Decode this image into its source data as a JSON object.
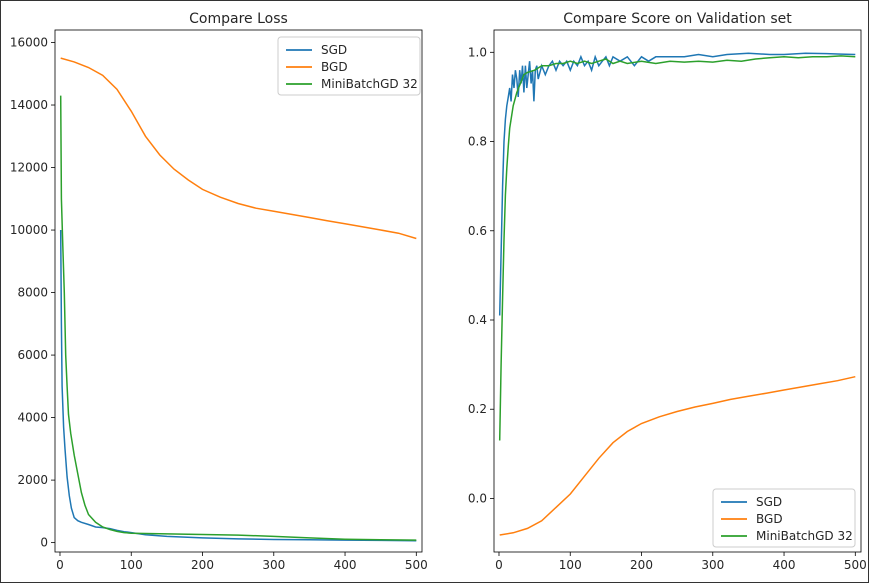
{
  "chart_data": [
    {
      "type": "line",
      "title": "Compare Loss",
      "xlabel": "",
      "ylabel": "",
      "xlim": [
        -7,
        508
      ],
      "ylim": [
        -300,
        16400
      ],
      "xticks": [
        0,
        100,
        200,
        300,
        400,
        500
      ],
      "yticks": [
        0,
        2000,
        4000,
        6000,
        8000,
        10000,
        12000,
        14000,
        16000
      ],
      "grid": false,
      "legend": "upper-right",
      "series": [
        {
          "name": "SGD",
          "color": "#1f77b4",
          "points": [
            [
              1,
              10000
            ],
            [
              2,
              7000
            ],
            [
              3,
              5000
            ],
            [
              5,
              3700
            ],
            [
              7,
              3000
            ],
            [
              10,
              2100
            ],
            [
              13,
              1500
            ],
            [
              16,
              1100
            ],
            [
              20,
              800
            ],
            [
              25,
              700
            ],
            [
              30,
              650
            ],
            [
              40,
              580
            ],
            [
              50,
              500
            ],
            [
              60,
              480
            ],
            [
              70,
              450
            ],
            [
              80,
              390
            ],
            [
              90,
              350
            ],
            [
              100,
              320
            ],
            [
              120,
              250
            ],
            [
              150,
              200
            ],
            [
              200,
              150
            ],
            [
              250,
              120
            ],
            [
              300,
              100
            ],
            [
              350,
              90
            ],
            [
              400,
              80
            ],
            [
              450,
              70
            ],
            [
              500,
              60
            ]
          ]
        },
        {
          "name": "BGD",
          "color": "#ff7f0e",
          "points": [
            [
              1,
              15500
            ],
            [
              20,
              15380
            ],
            [
              40,
              15200
            ],
            [
              60,
              14950
            ],
            [
              80,
              14500
            ],
            [
              100,
              13800
            ],
            [
              120,
              13000
            ],
            [
              140,
              12400
            ],
            [
              160,
              11950
            ],
            [
              180,
              11600
            ],
            [
              200,
              11300
            ],
            [
              225,
              11050
            ],
            [
              250,
              10850
            ],
            [
              275,
              10700
            ],
            [
              300,
              10600
            ],
            [
              325,
              10500
            ],
            [
              350,
              10400
            ],
            [
              375,
              10300
            ],
            [
              400,
              10200
            ],
            [
              425,
              10100
            ],
            [
              450,
              10000
            ],
            [
              475,
              9900
            ],
            [
              500,
              9730
            ]
          ]
        },
        {
          "name": "MiniBatchGD 32",
          "color": "#2ca02c",
          "points": [
            [
              1,
              14300
            ],
            [
              2,
              11000
            ],
            [
              4,
              9500
            ],
            [
              6,
              8000
            ],
            [
              8,
              6000
            ],
            [
              10,
              5000
            ],
            [
              12,
              4100
            ],
            [
              15,
              3500
            ],
            [
              20,
              2800
            ],
            [
              25,
              2200
            ],
            [
              30,
              1600
            ],
            [
              35,
              1200
            ],
            [
              40,
              900
            ],
            [
              50,
              650
            ],
            [
              60,
              500
            ],
            [
              70,
              420
            ],
            [
              80,
              360
            ],
            [
              90,
              320
            ],
            [
              100,
              300
            ],
            [
              150,
              280
            ],
            [
              200,
              260
            ],
            [
              250,
              240
            ],
            [
              300,
              200
            ],
            [
              350,
              150
            ],
            [
              400,
              110
            ],
            [
              450,
              90
            ],
            [
              500,
              80
            ]
          ]
        }
      ]
    },
    {
      "type": "line",
      "title": "Compare Score on Validation set",
      "xlabel": "",
      "ylabel": "",
      "xlim": [
        -7,
        508
      ],
      "ylim": [
        -0.12,
        1.05
      ],
      "xticks": [
        0,
        100,
        200,
        300,
        400,
        500
      ],
      "yticks": [
        "0.0",
        "0.2",
        "0.4",
        "0.6",
        "0.8",
        "1.0"
      ],
      "grid": false,
      "legend": "lower-right",
      "series": [
        {
          "name": "SGD",
          "color": "#1f77b4",
          "points": [
            [
              1,
              0.41
            ],
            [
              3,
              0.55
            ],
            [
              5,
              0.7
            ],
            [
              7,
              0.8
            ],
            [
              9,
              0.85
            ],
            [
              11,
              0.88
            ],
            [
              13,
              0.9
            ],
            [
              15,
              0.92
            ],
            [
              17,
              0.89
            ],
            [
              19,
              0.95
            ],
            [
              21,
              0.92
            ],
            [
              23,
              0.96
            ],
            [
              25,
              0.94
            ],
            [
              27,
              0.9
            ],
            [
              29,
              0.96
            ],
            [
              31,
              0.93
            ],
            [
              33,
              0.97
            ],
            [
              35,
              0.91
            ],
            [
              37,
              0.97
            ],
            [
              39,
              0.92
            ],
            [
              41,
              0.95
            ],
            [
              43,
              0.98
            ],
            [
              45,
              0.93
            ],
            [
              47,
              0.96
            ],
            [
              49,
              0.89
            ],
            [
              51,
              0.96
            ],
            [
              53,
              0.97
            ],
            [
              55,
              0.94
            ],
            [
              60,
              0.97
            ],
            [
              65,
              0.95
            ],
            [
              70,
              0.97
            ],
            [
              75,
              0.98
            ],
            [
              80,
              0.96
            ],
            [
              85,
              0.98
            ],
            [
              90,
              0.97
            ],
            [
              95,
              0.98
            ],
            [
              100,
              0.96
            ],
            [
              105,
              0.98
            ],
            [
              110,
              0.97
            ],
            [
              115,
              0.99
            ],
            [
              120,
              0.97
            ],
            [
              125,
              0.98
            ],
            [
              130,
              0.96
            ],
            [
              135,
              0.99
            ],
            [
              140,
              0.97
            ],
            [
              145,
              0.98
            ],
            [
              150,
              0.99
            ],
            [
              155,
              0.97
            ],
            [
              160,
              0.99
            ],
            [
              170,
              0.98
            ],
            [
              180,
              0.99
            ],
            [
              190,
              0.97
            ],
            [
              200,
              0.99
            ],
            [
              210,
              0.98
            ],
            [
              220,
              0.99
            ],
            [
              240,
              0.99
            ],
            [
              260,
              0.99
            ],
            [
              280,
              0.995
            ],
            [
              300,
              0.99
            ],
            [
              320,
              0.995
            ],
            [
              350,
              0.998
            ],
            [
              380,
              0.995
            ],
            [
              400,
              0.995
            ],
            [
              430,
              0.998
            ],
            [
              460,
              0.997
            ],
            [
              480,
              0.996
            ],
            [
              500,
              0.995
            ]
          ]
        },
        {
          "name": "BGD",
          "color": "#ff7f0e",
          "points": [
            [
              1,
              -0.082
            ],
            [
              20,
              -0.077
            ],
            [
              40,
              -0.067
            ],
            [
              60,
              -0.05
            ],
            [
              80,
              -0.02
            ],
            [
              100,
              0.01
            ],
            [
              120,
              0.05
            ],
            [
              140,
              0.09
            ],
            [
              160,
              0.125
            ],
            [
              180,
              0.15
            ],
            [
              200,
              0.168
            ],
            [
              225,
              0.183
            ],
            [
              250,
              0.195
            ],
            [
              275,
              0.205
            ],
            [
              300,
              0.213
            ],
            [
              325,
              0.222
            ],
            [
              350,
              0.229
            ],
            [
              375,
              0.236
            ],
            [
              400,
              0.243
            ],
            [
              425,
              0.25
            ],
            [
              450,
              0.257
            ],
            [
              475,
              0.264
            ],
            [
              500,
              0.273
            ]
          ]
        },
        {
          "name": "MiniBatchGD 32",
          "color": "#2ca02c",
          "points": [
            [
              1,
              0.13
            ],
            [
              3,
              0.3
            ],
            [
              5,
              0.45
            ],
            [
              7,
              0.58
            ],
            [
              9,
              0.68
            ],
            [
              11,
              0.74
            ],
            [
              13,
              0.79
            ],
            [
              15,
              0.83
            ],
            [
              18,
              0.86
            ],
            [
              20,
              0.88
            ],
            [
              25,
              0.91
            ],
            [
              30,
              0.93
            ],
            [
              35,
              0.95
            ],
            [
              40,
              0.955
            ],
            [
              50,
              0.96
            ],
            [
              60,
              0.97
            ],
            [
              70,
              0.97
            ],
            [
              80,
              0.975
            ],
            [
              90,
              0.975
            ],
            [
              100,
              0.98
            ],
            [
              110,
              0.975
            ],
            [
              120,
              0.98
            ],
            [
              130,
              0.975
            ],
            [
              140,
              0.98
            ],
            [
              150,
              0.985
            ],
            [
              160,
              0.975
            ],
            [
              170,
              0.98
            ],
            [
              180,
              0.975
            ],
            [
              200,
              0.98
            ],
            [
              220,
              0.975
            ],
            [
              240,
              0.98
            ],
            [
              260,
              0.978
            ],
            [
              280,
              0.98
            ],
            [
              300,
              0.978
            ],
            [
              320,
              0.982
            ],
            [
              340,
              0.98
            ],
            [
              360,
              0.985
            ],
            [
              380,
              0.988
            ],
            [
              400,
              0.99
            ],
            [
              420,
              0.988
            ],
            [
              440,
              0.99
            ],
            [
              460,
              0.99
            ],
            [
              480,
              0.992
            ],
            [
              500,
              0.99
            ]
          ]
        }
      ]
    }
  ]
}
